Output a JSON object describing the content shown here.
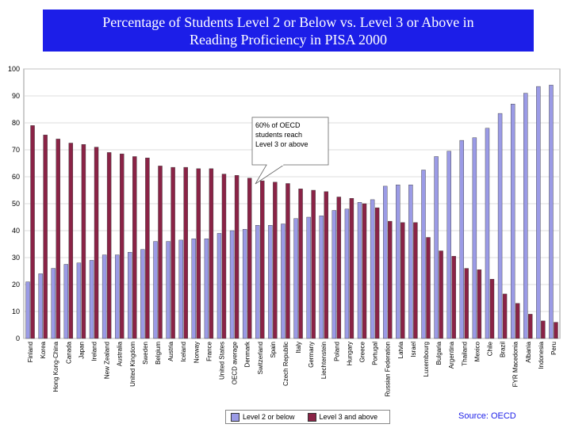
{
  "title_line1": "Percentage of Students Level 2 or Below vs. Level 3 or Above in",
  "title_line2": "Reading Proficiency in PISA 2000",
  "source": "Source: OECD",
  "legend": [
    {
      "label": "Level 2 or below",
      "color": "#9b9be6"
    },
    {
      "label": "Level 3 and above",
      "color": "#8a2346"
    }
  ],
  "annotation": [
    "60% of OECD",
    "students reach",
    "Level 3 or above"
  ],
  "chart_data": {
    "type": "bar",
    "ylim": [
      0,
      100
    ],
    "yticks": [
      0,
      10,
      20,
      30,
      40,
      50,
      60,
      70,
      80,
      90,
      100
    ],
    "grid": true,
    "legend_position": "bottom",
    "categories": [
      "Finland",
      "Korea",
      "Hong Kong-China",
      "Canada",
      "Japan",
      "Ireland",
      "New Zealand",
      "Australia",
      "United Kingdom",
      "Sweden",
      "Belgium",
      "Austria",
      "Iceland",
      "Norway",
      "France",
      "United States",
      "OECD average",
      "Denmark",
      "Switzerland",
      "Spain",
      "Czech Republic",
      "Italy",
      "Germany",
      "Liechtenstein",
      "Poland",
      "Hungary",
      "Greece",
      "Portugal",
      "Russian Federation",
      "Latvia",
      "Israel",
      "Luxembourg",
      "Bulgaria",
      "Argentina",
      "Thailand",
      "Mexico",
      "Chile",
      "Brazil",
      "FYR Macedonia",
      "Albania",
      "Indonesia",
      "Peru"
    ],
    "series": [
      {
        "name": "Level 2 or below",
        "values": [
          21,
          24,
          26,
          27.5,
          28,
          29,
          31,
          31,
          32,
          33,
          36,
          36,
          36.5,
          37,
          37,
          39,
          40,
          40.5,
          42,
          42,
          42.5,
          44.5,
          45,
          45.5,
          47.5,
          48,
          50.5,
          51.5,
          56.5,
          57,
          57,
          62.5,
          67.5,
          69.5,
          73.5,
          74.5,
          78,
          83.5,
          87,
          91,
          93.5,
          94
        ]
      },
      {
        "name": "Level 3 and above",
        "values": [
          79,
          75.5,
          74,
          72.5,
          72,
          71,
          69,
          68.5,
          67.5,
          67,
          64,
          63.5,
          63.5,
          63,
          63,
          61,
          60.5,
          59.5,
          58.5,
          58,
          57.5,
          55.5,
          55,
          54.5,
          52.5,
          52,
          50,
          48.5,
          43.5,
          43,
          43,
          37.5,
          32.5,
          30.5,
          26,
          25.5,
          22,
          16.5,
          13,
          9,
          6.5,
          6
        ]
      }
    ]
  }
}
